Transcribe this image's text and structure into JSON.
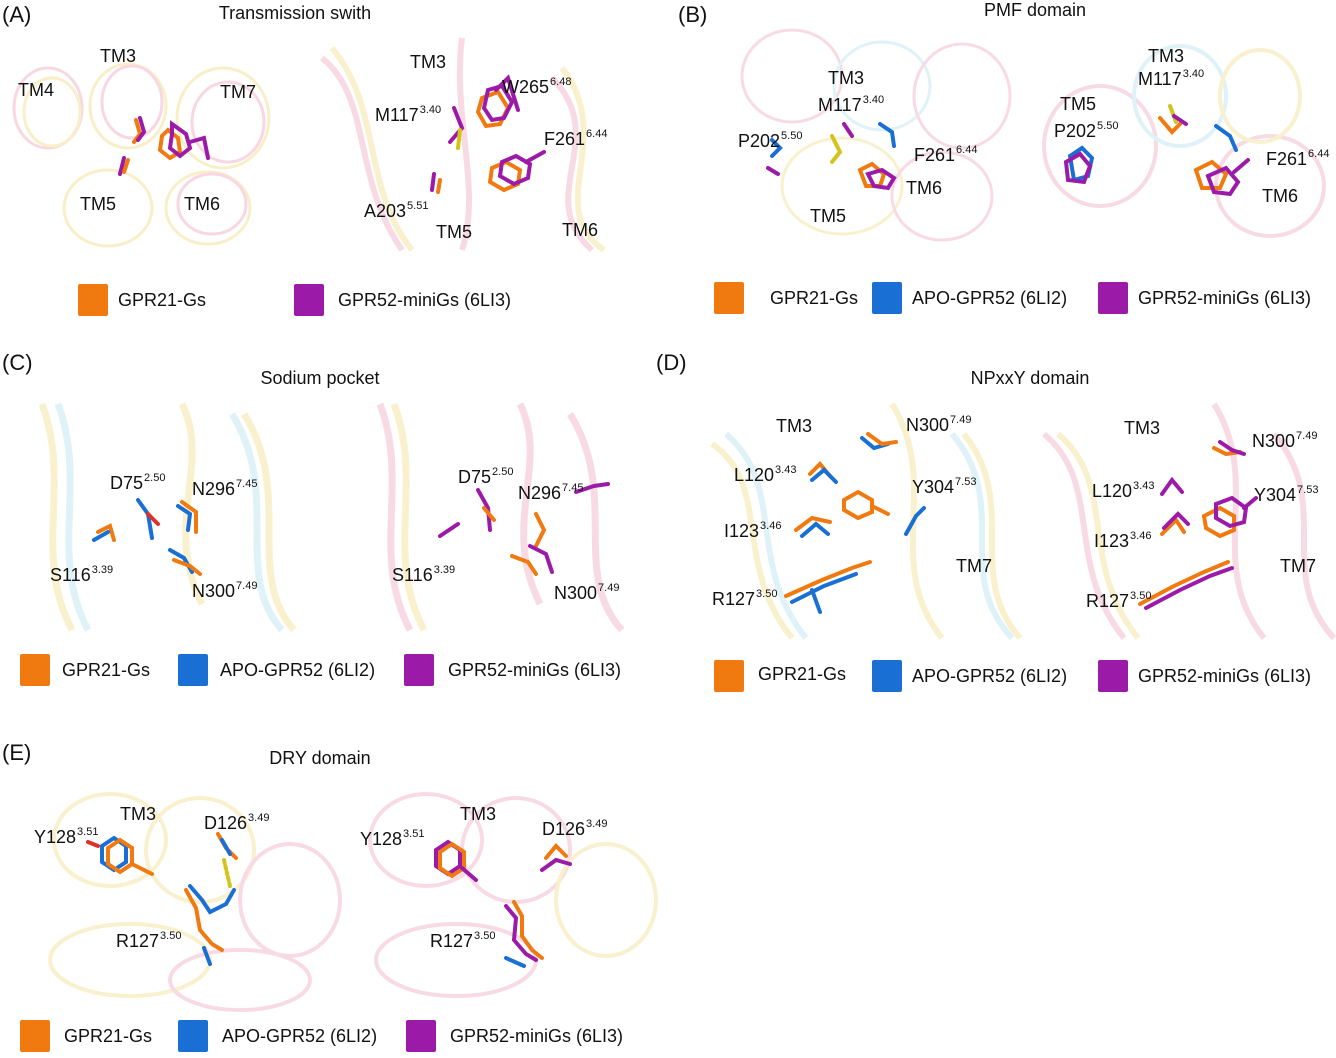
{
  "colors": {
    "gpr21": "#F07A10",
    "apo": "#1A6FD4",
    "minigs": "#9B1AA8",
    "yellow_ribbon": "#F4E39C",
    "pink_ribbon": "#F3B7CD",
    "cyan_ribbon": "#BFE6F2"
  },
  "panels": {
    "A": {
      "letter": "(A)",
      "title": "Transmission swith",
      "left": {
        "tm4": "TM4",
        "tm3": "TM3",
        "tm7": "TM7",
        "tm5": "TM5",
        "tm6": "TM6"
      },
      "right": {
        "tm3": "TM3",
        "m117": {
          "name": "M117",
          "sup": "3.40"
        },
        "w265": {
          "name": "W265",
          "sup": "6.48"
        },
        "f261": {
          "name": "F261",
          "sup": "6.44"
        },
        "a203": {
          "name": "A203",
          "sup": "5.51"
        },
        "tm5": "TM5",
        "tm6": "TM6"
      },
      "legend": [
        "GPR21-Gs",
        "GPR52-miniGs (6LI3)"
      ]
    },
    "B": {
      "letter": "(B)",
      "title": "PMF domain",
      "left": {
        "tm3": "TM3",
        "m117": {
          "name": "M117",
          "sup": "3.40"
        },
        "p202": {
          "name": "P202",
          "sup": "5.50"
        },
        "f261": {
          "name": "F261",
          "sup": "6.44"
        },
        "tm6": "TM6",
        "tm5": "TM5"
      },
      "right": {
        "tm3": "TM3",
        "m117": {
          "name": "M117",
          "sup": "3.40"
        },
        "tm5": "TM5",
        "p202": {
          "name": "P202",
          "sup": "5.50"
        },
        "f261": {
          "name": "F261",
          "sup": "6.44"
        },
        "tm6": "TM6"
      },
      "legend": [
        "GPR21-Gs",
        "APO-GPR52 (6LI2)",
        "GPR52-miniGs (6LI3)"
      ]
    },
    "C": {
      "letter": "(C)",
      "title": "Sodium pocket",
      "left": {
        "d75": {
          "name": "D75",
          "sup": "2.50"
        },
        "n296": {
          "name": "N296",
          "sup": "7.45"
        },
        "s116": {
          "name": "S116",
          "sup": "3.39"
        },
        "n300": {
          "name": "N300",
          "sup": "7.49"
        }
      },
      "right": {
        "d75": {
          "name": "D75",
          "sup": "2.50"
        },
        "n296": {
          "name": "N296",
          "sup": "7.45"
        },
        "s116": {
          "name": "S116",
          "sup": "3.39"
        },
        "n300": {
          "name": "N300",
          "sup": "7.49"
        }
      },
      "legend": [
        "GPR21-Gs",
        "APO-GPR52 (6LI2)",
        "GPR52-miniGs (6LI3)"
      ]
    },
    "D": {
      "letter": "(D)",
      "title": "NPxxY domain",
      "left": {
        "tm3": "TM3",
        "n300": {
          "name": "N300",
          "sup": "7.49"
        },
        "l120": {
          "name": "L120",
          "sup": "3.43"
        },
        "y304": {
          "name": "Y304",
          "sup": "7.53"
        },
        "i123": {
          "name": "I123",
          "sup": "3.46"
        },
        "tm7": "TM7",
        "r127": {
          "name": "R127",
          "sup": "3.50"
        }
      },
      "right": {
        "tm3": "TM3",
        "n300": {
          "name": "N300",
          "sup": "7.49"
        },
        "l120": {
          "name": "L120",
          "sup": "3.43"
        },
        "y304": {
          "name": "Y304",
          "sup": "7.53"
        },
        "i123": {
          "name": "I123",
          "sup": "3.46"
        },
        "tm7": "TM7",
        "r127": {
          "name": "R127",
          "sup": "3.50"
        }
      },
      "legend": [
        "GPR21-Gs",
        "APO-GPR52 (6LI2)",
        "GPR52-miniGs (6LI3)"
      ]
    },
    "E": {
      "letter": "(E)",
      "title": "DRY domain",
      "left": {
        "tm3": "TM3",
        "y128": {
          "name": "Y128",
          "sup": "3.51"
        },
        "d126": {
          "name": "D126",
          "sup": "3.49"
        },
        "r127": {
          "name": "R127",
          "sup": "3.50"
        }
      },
      "right": {
        "tm3": "TM3",
        "y128": {
          "name": "Y128",
          "sup": "3.51"
        },
        "d126": {
          "name": "D126",
          "sup": "3.49"
        },
        "r127": {
          "name": "R127",
          "sup": "3.50"
        }
      },
      "legend": [
        "GPR21-Gs",
        "APO-GPR52 (6LI2)",
        "GPR52-miniGs (6LI3)"
      ]
    }
  }
}
